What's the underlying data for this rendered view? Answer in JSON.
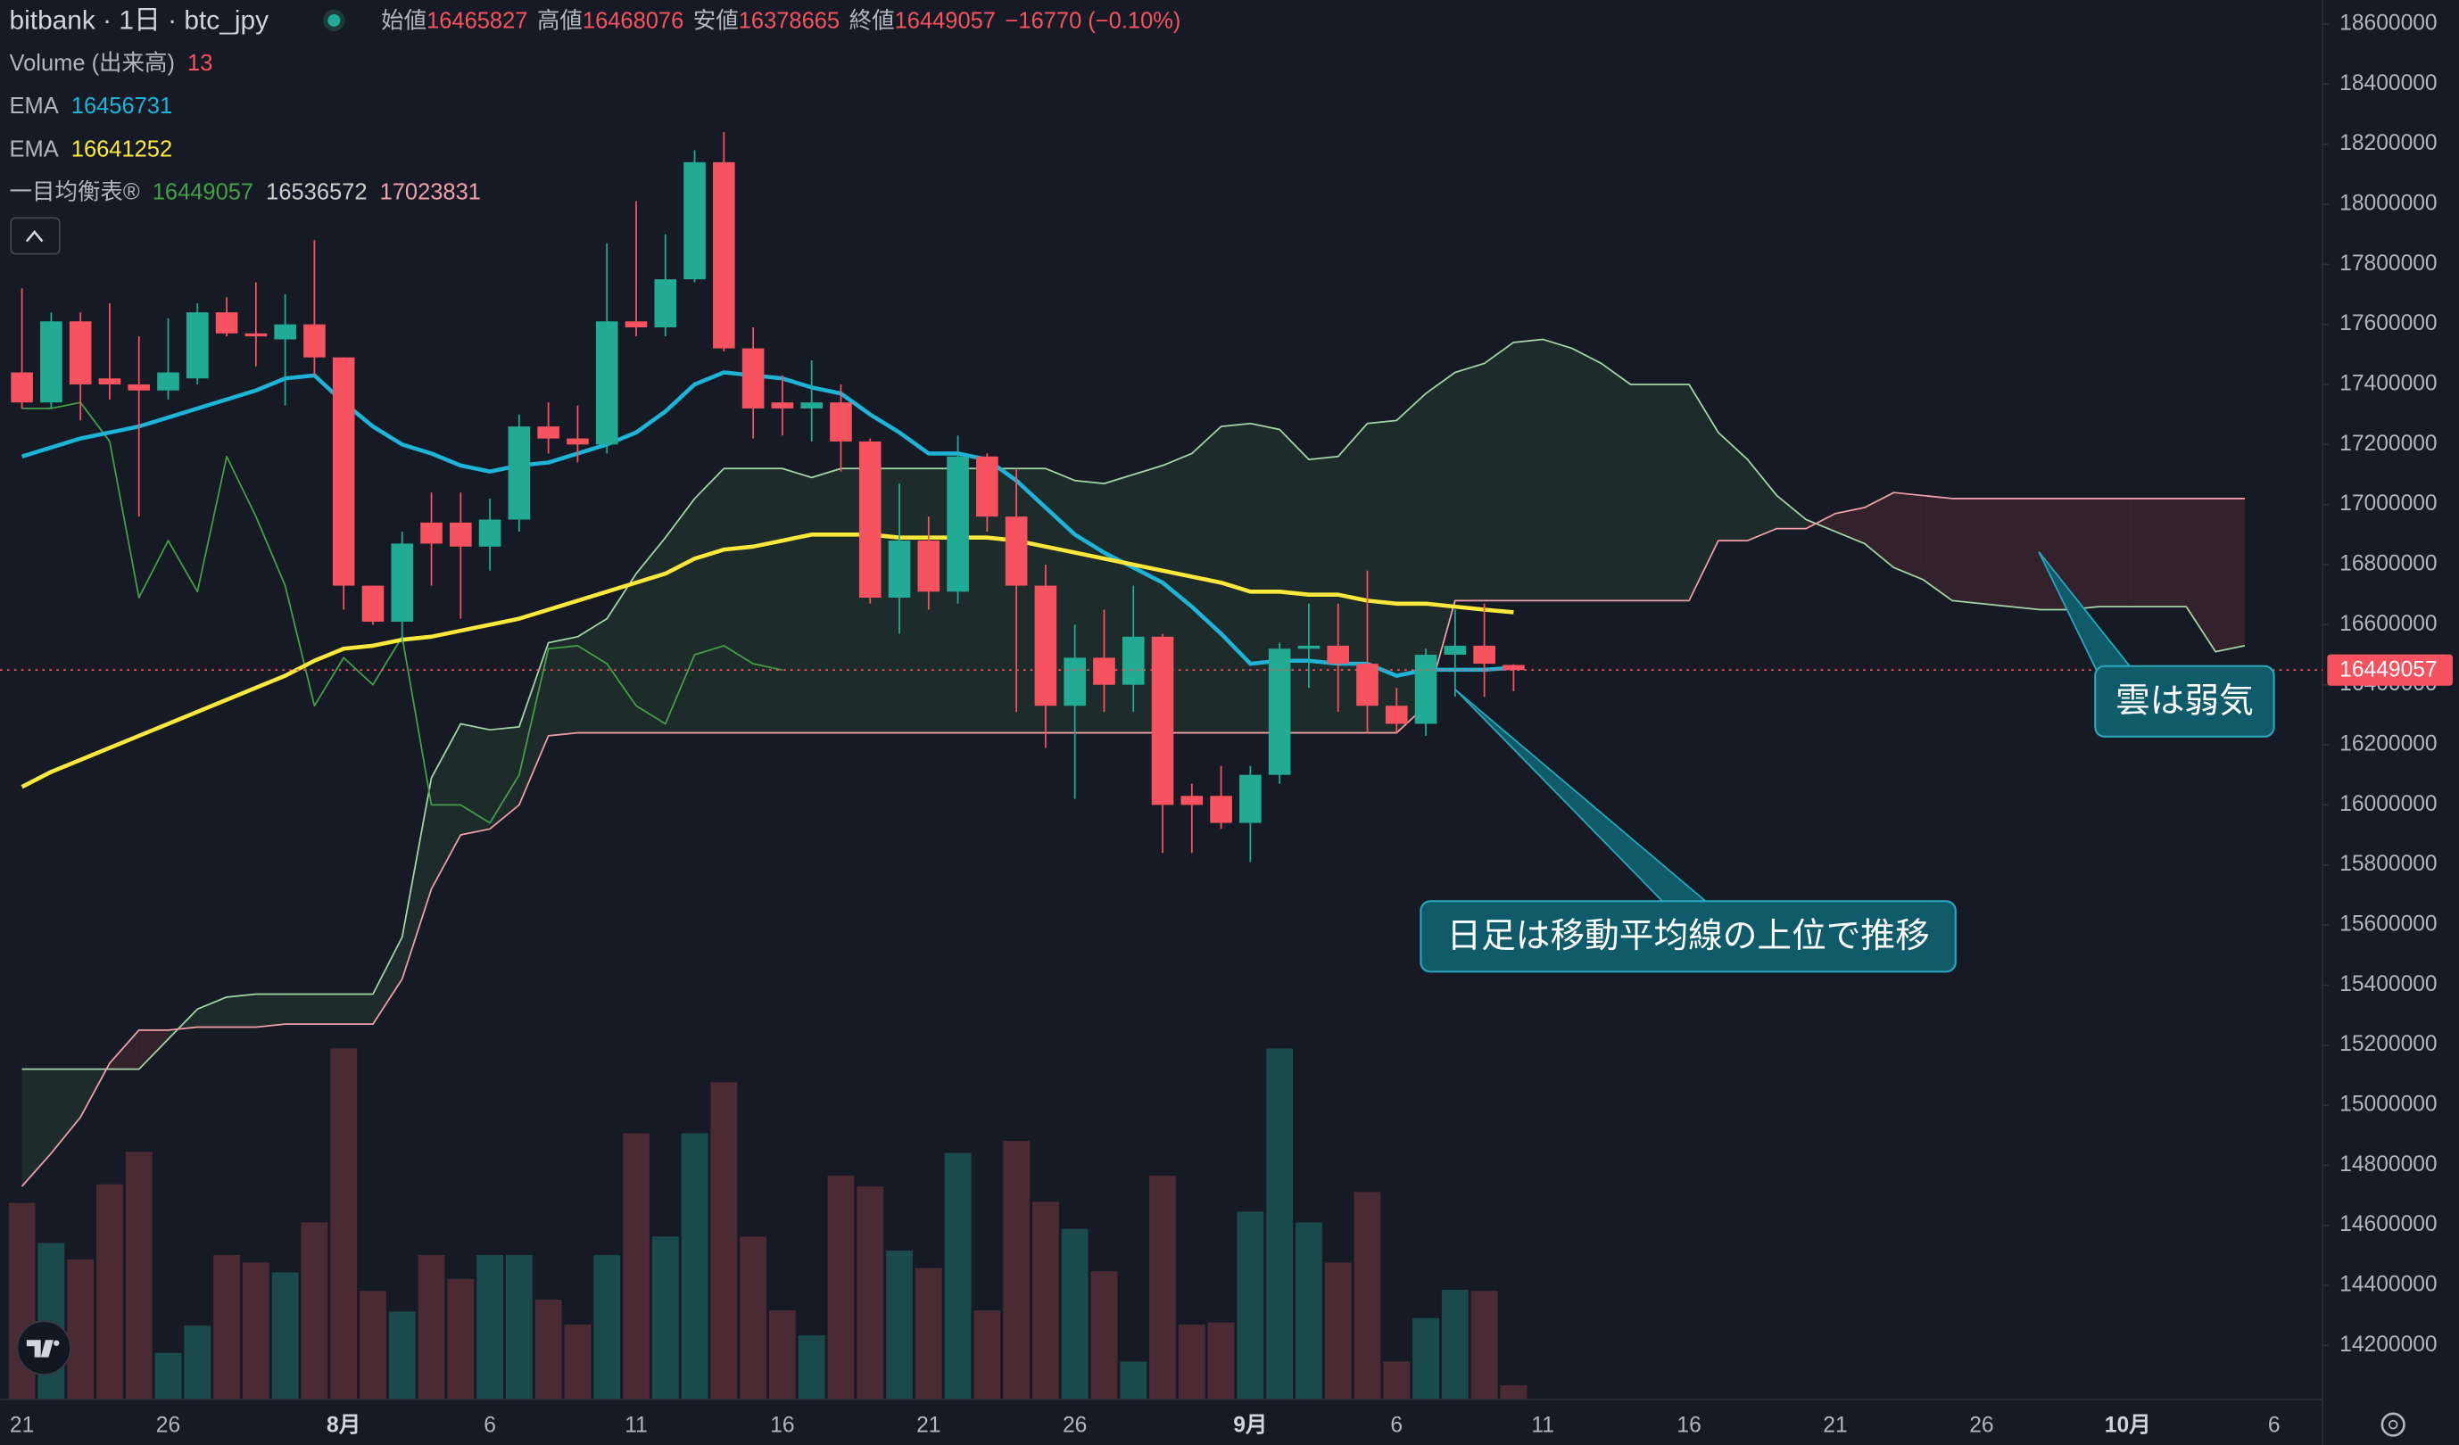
{
  "chart_data": {
    "type": "candlestick",
    "title": "bitbank · 1日 · btc_jpy",
    "header": {
      "fields": [
        {
          "label": "始値",
          "value": 16465827
        },
        {
          "label": "高値",
          "value": 16468076
        },
        {
          "label": "安値",
          "value": 16378665
        },
        {
          "label": "終値",
          "value": 16449057
        }
      ],
      "change": "−16770 (−0.10%)",
      "color": "#f7525f"
    },
    "legend": [
      {
        "name": "Volume (出来高)",
        "values": [
          13
        ],
        "colors": [
          "#f7525f"
        ]
      },
      {
        "name": "EMA",
        "values": [
          16456731
        ],
        "colors": [
          "#1eb4d8"
        ]
      },
      {
        "name": "EMA",
        "values": [
          16641252
        ],
        "colors": [
          "#fde93b"
        ]
      },
      {
        "name": "一目均衡表®",
        "values": [
          16449057,
          16536572,
          17023831
        ],
        "colors": [
          "#43a047",
          "#c8d0c8",
          "#f0a0a8"
        ]
      }
    ],
    "categories": [
      "21",
      null,
      null,
      null,
      null,
      "26",
      null,
      null,
      null,
      null,
      null,
      "8月",
      null,
      null,
      null,
      null,
      "6",
      null,
      null,
      null,
      null,
      "11",
      null,
      null,
      null,
      null,
      "16",
      null,
      null,
      null,
      null,
      "21",
      null,
      null,
      null,
      null,
      "26",
      null,
      null,
      null,
      null,
      null,
      "9月",
      null,
      null,
      null,
      null,
      "6",
      null,
      null,
      null,
      null,
      "11",
      null,
      null,
      null,
      null,
      "16",
      null,
      null,
      null,
      null,
      "21",
      null,
      null,
      null,
      null,
      "26",
      null,
      null,
      null,
      null,
      "10月",
      null,
      null,
      null,
      null,
      "6"
    ],
    "open": [
      17440000,
      17340000,
      17610000,
      17420000,
      17400000,
      17380000,
      17420000,
      17640000,
      17570000,
      17550000,
      17600000,
      17490000,
      16730000,
      16610000,
      16940000,
      16940000,
      16860000,
      16950000,
      17260000,
      17220000,
      17200000,
      17610000,
      17590000,
      17750000,
      18140000,
      17520000,
      17340000,
      17320000,
      17340000,
      17210000,
      16690000,
      16880000,
      16710000,
      17160000,
      16960000,
      16730000,
      16330000,
      16490000,
      16400000,
      16560000,
      16030000,
      16030000,
      15940000,
      16100000,
      16520000,
      16530000,
      16470000,
      16330000,
      16270000,
      16500000,
      16530000,
      16465827,
      null,
      null,
      null,
      null,
      null,
      null,
      null,
      null,
      null,
      null,
      null,
      null,
      null,
      null,
      null,
      null,
      null,
      null,
      null,
      null,
      null,
      null,
      null,
      null,
      null,
      null
    ],
    "high": [
      17720000,
      17640000,
      17640000,
      17670000,
      17560000,
      17620000,
      17670000,
      17690000,
      17740000,
      17700000,
      17880000,
      17490000,
      16730000,
      16910000,
      17040000,
      17040000,
      17020000,
      17300000,
      17340000,
      17330000,
      17870000,
      18010000,
      17900000,
      18180000,
      18240000,
      17590000,
      17430000,
      17480000,
      17400000,
      17220000,
      17070000,
      16960000,
      17230000,
      17170000,
      17120000,
      16800000,
      16600000,
      16650000,
      16730000,
      16570000,
      16070000,
      16130000,
      16130000,
      16540000,
      16670000,
      16670000,
      16780000,
      16390000,
      16520000,
      16650000,
      16670000,
      16468076,
      null,
      null,
      null,
      null,
      null,
      null,
      null,
      null,
      null,
      null,
      null,
      null,
      null,
      null,
      null,
      null,
      null,
      null,
      null,
      null,
      null,
      null,
      null,
      null,
      null,
      null
    ],
    "low": [
      17320000,
      17320000,
      17280000,
      17350000,
      16960000,
      17350000,
      17400000,
      17560000,
      17460000,
      17330000,
      17430000,
      16650000,
      16600000,
      16540000,
      16730000,
      16620000,
      16780000,
      16910000,
      17170000,
      17140000,
      17170000,
      17560000,
      17560000,
      17740000,
      17510000,
      17220000,
      17230000,
      17210000,
      17110000,
      16670000,
      16570000,
      16650000,
      16670000,
      16910000,
      16310000,
      16190000,
      16020000,
      16310000,
      16310000,
      15840000,
      15840000,
      15920000,
      15810000,
      16070000,
      16390000,
      16310000,
      16240000,
      16240000,
      16230000,
      16360000,
      16360000,
      16378665,
      null,
      null,
      null,
      null,
      null,
      null,
      null,
      null,
      null,
      null,
      null,
      null,
      null,
      null,
      null,
      null,
      null,
      null,
      null,
      null,
      null,
      null,
      null,
      null,
      null,
      null
    ],
    "close": [
      17340000,
      17610000,
      17400000,
      17400000,
      17380000,
      17440000,
      17640000,
      17570000,
      17560000,
      17600000,
      17490000,
      16730000,
      16610000,
      16870000,
      16870000,
      16860000,
      16950000,
      17260000,
      17220000,
      17200000,
      17610000,
      17590000,
      17750000,
      18140000,
      17520000,
      17320000,
      17320000,
      17340000,
      17210000,
      16690000,
      16880000,
      16710000,
      17160000,
      16960000,
      16730000,
      16330000,
      16490000,
      16400000,
      16560000,
      16000000,
      16000000,
      15940000,
      16100000,
      16520000,
      16530000,
      16470000,
      16330000,
      16270000,
      16500000,
      16530000,
      16470000,
      16449057,
      null,
      null,
      null,
      null,
      null,
      null,
      null,
      null,
      null,
      null,
      null,
      null,
      null,
      null,
      null,
      null,
      null,
      null,
      null,
      null,
      null,
      null,
      null,
      null,
      null,
      null
    ],
    "up_color": "#22ab94",
    "down_color": "#f7525f",
    "volume": {
      "values": [
        181,
        144,
        129,
        198,
        228,
        43,
        68,
        133,
        126,
        117,
        163,
        323,
        100,
        81,
        133,
        111,
        133,
        133,
        92,
        69,
        133,
        245,
        150,
        245,
        292,
        150,
        82,
        59,
        206,
        196,
        137,
        121,
        227,
        82,
        238,
        182,
        157,
        118,
        35,
        206,
        69,
        71,
        173,
        323,
        163,
        126,
        191,
        35,
        75,
        101,
        100,
        13,
        null,
        null,
        null,
        null,
        null,
        null,
        null,
        null,
        null,
        null,
        null,
        null,
        null,
        null,
        null,
        null,
        null,
        null,
        null,
        null,
        null,
        null,
        null,
        null,
        null,
        null
      ],
      "up_color": "#1b4a4c",
      "down_color": "#4a2a33"
    },
    "lines": [
      {
        "color": "#1eb4d8",
        "values": [
          17160000,
          17190000,
          17220000,
          17240000,
          17260000,
          17290000,
          17320000,
          17350000,
          17380000,
          17420000,
          17430000,
          17340000,
          17260000,
          17200000,
          17170000,
          17130000,
          17110000,
          17130000,
          17140000,
          17170000,
          17200000,
          17240000,
          17310000,
          17400000,
          17440000,
          17430000,
          17420000,
          17390000,
          17370000,
          17300000,
          17240000,
          17170000,
          17170000,
          17150000,
          17080000,
          16990000,
          16900000,
          16840000,
          16790000,
          16740000,
          16660000,
          16570000,
          16470000,
          16480000,
          16480000,
          16470000,
          16470000,
          16430000,
          16450000,
          16450000,
          16450000,
          16456731,
          null,
          null,
          null,
          null,
          null,
          null,
          null,
          null,
          null,
          null,
          null,
          null,
          null,
          null,
          null,
          null,
          null,
          null,
          null,
          null,
          null,
          null,
          null,
          null,
          null,
          null
        ]
      },
      {
        "color": "#fde93b",
        "values": [
          16060000,
          16110000,
          16150000,
          16190000,
          16230000,
          16270000,
          16310000,
          16350000,
          16390000,
          16430000,
          16480000,
          16520000,
          16530000,
          16550000,
          16560000,
          16580000,
          16600000,
          16620000,
          16650000,
          16680000,
          16710000,
          16740000,
          16770000,
          16820000,
          16850000,
          16860000,
          16880000,
          16900000,
          16900000,
          16900000,
          16890000,
          16890000,
          16890000,
          16890000,
          16880000,
          16860000,
          16840000,
          16820000,
          16800000,
          16780000,
          16760000,
          16740000,
          16710000,
          16710000,
          16700000,
          16700000,
          16680000,
          16670000,
          16670000,
          16660000,
          16650000,
          16641252,
          null,
          null,
          null,
          null,
          null,
          null,
          null,
          null,
          null,
          null,
          null,
          null,
          null,
          null,
          null,
          null,
          null,
          null,
          null,
          null,
          null,
          null,
          null,
          null,
          null,
          null
        ]
      }
    ],
    "ichimoku": {
      "lagging": {
        "color": "#43a047",
        "values": [
          17320000,
          17320000,
          17340000,
          17210000,
          16690000,
          16880000,
          16710000,
          17160000,
          16960000,
          16730000,
          16330000,
          16490000,
          16400000,
          16560000,
          16000000,
          16000000,
          15940000,
          16100000,
          16520000,
          16530000,
          16470000,
          16330000,
          16270000,
          16500000,
          16530000,
          16470000,
          16449057,
          null,
          null,
          null,
          null,
          null,
          null,
          null,
          null,
          null,
          null,
          null,
          null,
          null,
          null,
          null,
          null,
          null,
          null,
          null,
          null,
          null,
          null,
          null,
          null,
          null,
          null,
          null,
          null,
          null,
          null,
          null,
          null,
          null,
          null,
          null,
          null,
          null,
          null,
          null,
          null,
          null,
          null,
          null,
          null,
          null,
          null,
          null,
          null,
          null,
          null,
          null
        ]
      },
      "lead_a": {
        "color": "#a5d6a7",
        "values": [
          15120000,
          15120000,
          15120000,
          15120000,
          15120000,
          15220000,
          15320000,
          15360000,
          15370000,
          15370000,
          15370000,
          15370000,
          15370000,
          15560000,
          16090000,
          16270000,
          16250000,
          16260000,
          16540000,
          16560000,
          16620000,
          16770000,
          16890000,
          17020000,
          17120000,
          17120000,
          17120000,
          17090000,
          17120000,
          17120000,
          17120000,
          17120000,
          17120000,
          17120000,
          17120000,
          17120000,
          17080000,
          17070000,
          17100000,
          17130000,
          17170000,
          17260000,
          17270000,
          17250000,
          17150000,
          17160000,
          17270000,
          17280000,
          17370000,
          17440000,
          17470000,
          17540000,
          17550000,
          17520000,
          17470000,
          17400000,
          17400000,
          17400000,
          17240000,
          17150000,
          17030000,
          16950000,
          16910000,
          16870000,
          16790000,
          16750000,
          16680000,
          16670000,
          16660000,
          16650000,
          16650000,
          16660000,
          16660000,
          16660000,
          16660000,
          16510000,
          16530000,
          null
        ]
      },
      "lead_b": {
        "color": "#f0a0a8",
        "values": [
          14730000,
          14840000,
          14960000,
          15140000,
          15250000,
          15250000,
          15260000,
          15260000,
          15260000,
          15270000,
          15270000,
          15270000,
          15270000,
          15420000,
          15720000,
          15900000,
          15920000,
          16000000,
          16230000,
          16240000,
          16240000,
          16240000,
          16240000,
          16240000,
          16240000,
          16240000,
          16240000,
          16240000,
          16240000,
          16240000,
          16240000,
          16240000,
          16240000,
          16240000,
          16240000,
          16240000,
          16240000,
          16240000,
          16240000,
          16240000,
          16240000,
          16240000,
          16240000,
          16240000,
          16240000,
          16240000,
          16240000,
          16240000,
          16330000,
          16680000,
          16680000,
          16680000,
          16680000,
          16680000,
          16680000,
          16680000,
          16680000,
          16680000,
          16880000,
          16880000,
          16920000,
          16920000,
          16970000,
          16990000,
          17040000,
          17030000,
          17020000,
          17020000,
          17020000,
          17020000,
          17020000,
          17020000,
          17020000,
          17020000,
          17020000,
          17020000,
          17020000,
          null
        ]
      },
      "cloud_up": "#1e2b2b",
      "cloud_down": "#33222c"
    },
    "last_price": 16449057,
    "ylim": [
      14020000,
      18680000
    ],
    "yticks": [
      14200000,
      14400000,
      14600000,
      14800000,
      15000000,
      15200000,
      15400000,
      15600000,
      15800000,
      16000000,
      16200000,
      16400000,
      16600000,
      16800000,
      17000000,
      17200000,
      17400000,
      17600000,
      17800000,
      18000000,
      18200000,
      18400000,
      18600000
    ],
    "grid": false,
    "annotations": [
      {
        "text": "日足は移動平均線の上位で推移"
      },
      {
        "text": "雲は弱気"
      }
    ]
  }
}
